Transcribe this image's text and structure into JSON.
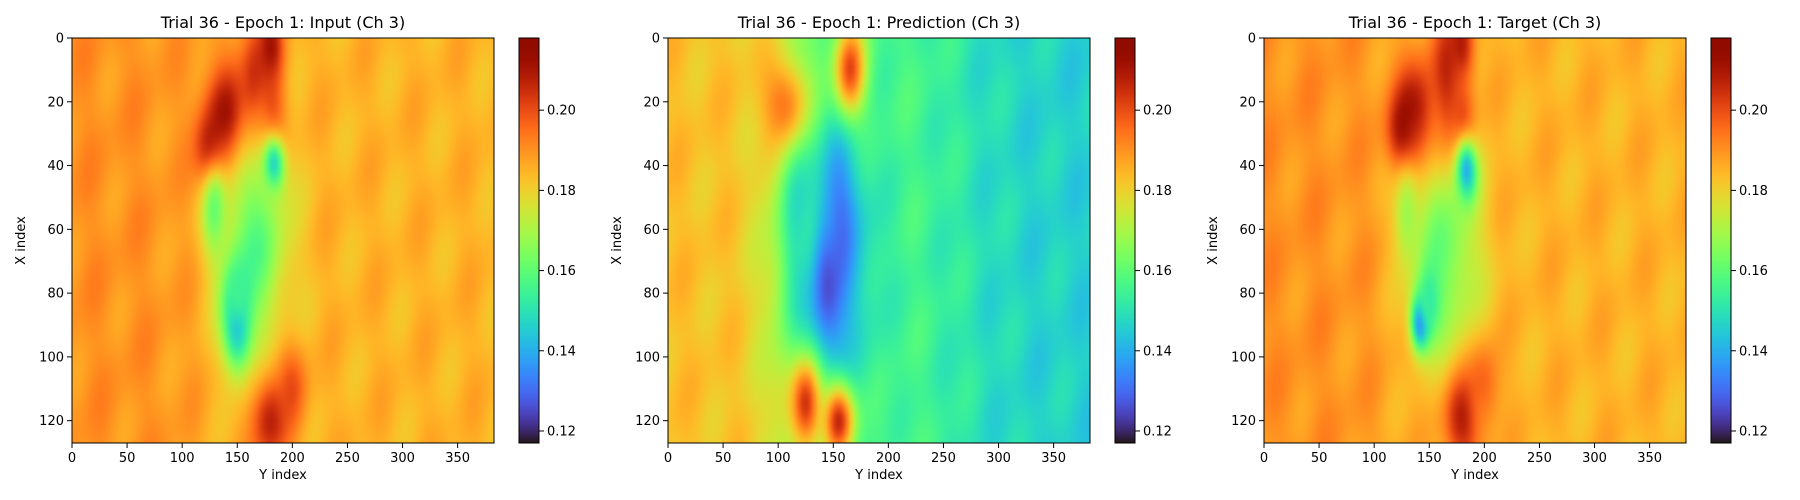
{
  "figure": {
    "colormap": "turbo"
  },
  "chart_data": [
    {
      "type": "heatmap",
      "title": "Trial 36 - Epoch 1: Input (Ch 3)",
      "xlabel": "Y index",
      "ylabel": "X index",
      "xlim": [
        0,
        383
      ],
      "ylim": [
        127,
        0
      ],
      "x_ticks": [
        0,
        50,
        100,
        150,
        200,
        250,
        300,
        350
      ],
      "y_ticks": [
        0,
        20,
        40,
        60,
        80,
        100,
        120
      ],
      "colorbar": {
        "min": 0.117,
        "max": 0.218,
        "ticks": [
          0.12,
          0.14,
          0.16,
          0.18,
          0.2
        ],
        "tick_labels": [
          "0.12",
          "0.14",
          "0.16",
          "0.18",
          "0.20"
        ]
      },
      "field": {
        "background": 0.185,
        "left_band": 0.19,
        "features": [
          {
            "x": 140,
            "y": 25,
            "sx": 15,
            "sy": 12,
            "v": 0.213
          },
          {
            "x": 128,
            "y": 35,
            "sx": 10,
            "sy": 8,
            "v": 0.215
          },
          {
            "x": 165,
            "y": 15,
            "sx": 10,
            "sy": 15,
            "v": 0.208
          },
          {
            "x": 180,
            "y": 3,
            "sx": 8,
            "sy": 8,
            "v": 0.21
          },
          {
            "x": 180,
            "y": 25,
            "sx": 10,
            "sy": 12,
            "v": 0.205
          },
          {
            "x": 183,
            "y": 40,
            "sx": 7,
            "sy": 6,
            "v": 0.135
          },
          {
            "x": 165,
            "y": 65,
            "sx": 22,
            "sy": 22,
            "v": 0.16
          },
          {
            "x": 150,
            "y": 90,
            "sx": 9,
            "sy": 10,
            "v": 0.138
          },
          {
            "x": 150,
            "y": 78,
            "sx": 8,
            "sy": 8,
            "v": 0.155
          },
          {
            "x": 130,
            "y": 55,
            "sx": 8,
            "sy": 10,
            "v": 0.163
          },
          {
            "x": 180,
            "y": 120,
            "sx": 12,
            "sy": 10,
            "v": 0.208
          },
          {
            "x": 200,
            "y": 110,
            "sx": 10,
            "sy": 10,
            "v": 0.198
          }
        ]
      }
    },
    {
      "type": "heatmap",
      "title": "Trial 36 - Epoch 1: Prediction (Ch 3)",
      "xlabel": "Y index",
      "ylabel": "X index",
      "xlim": [
        0,
        383
      ],
      "ylim": [
        127,
        0
      ],
      "x_ticks": [
        0,
        50,
        100,
        150,
        200,
        250,
        300,
        350
      ],
      "y_ticks": [
        0,
        20,
        40,
        60,
        80,
        100,
        120
      ],
      "colorbar": {
        "min": 0.117,
        "max": 0.218,
        "ticks": [
          0.12,
          0.14,
          0.16,
          0.18,
          0.2
        ],
        "tick_labels": [
          "0.12",
          "0.14",
          "0.16",
          "0.18",
          "0.20"
        ]
      },
      "field": {
        "background": 0.158,
        "left_band": 0.183,
        "right_band": 0.146,
        "features": [
          {
            "x": 150,
            "y": 70,
            "sx": 30,
            "sy": 30,
            "v": 0.14
          },
          {
            "x": 145,
            "y": 78,
            "sx": 10,
            "sy": 14,
            "v": 0.123
          },
          {
            "x": 155,
            "y": 55,
            "sx": 10,
            "sy": 15,
            "v": 0.132
          },
          {
            "x": 120,
            "y": 60,
            "sx": 10,
            "sy": 20,
            "v": 0.15
          },
          {
            "x": 165,
            "y": 10,
            "sx": 10,
            "sy": 10,
            "v": 0.2
          },
          {
            "x": 125,
            "y": 115,
            "sx": 10,
            "sy": 10,
            "v": 0.207
          },
          {
            "x": 155,
            "y": 120,
            "sx": 10,
            "sy": 8,
            "v": 0.205
          },
          {
            "x": 105,
            "y": 20,
            "sx": 15,
            "sy": 10,
            "v": 0.195
          }
        ]
      }
    },
    {
      "type": "heatmap",
      "title": "Trial 36 - Epoch 1: Target (Ch 3)",
      "xlabel": "Y index",
      "ylabel": "X index",
      "xlim": [
        0,
        383
      ],
      "ylim": [
        127,
        0
      ],
      "x_ticks": [
        0,
        50,
        100,
        150,
        200,
        250,
        300,
        350
      ],
      "y_ticks": [
        0,
        20,
        40,
        60,
        80,
        100,
        120
      ],
      "colorbar": {
        "min": 0.117,
        "max": 0.218,
        "ticks": [
          0.12,
          0.14,
          0.16,
          0.18,
          0.2
        ],
        "tick_labels": [
          "0.12",
          "0.14",
          "0.16",
          "0.18",
          "0.20"
        ]
      },
      "field": {
        "background": 0.185,
        "left_band": 0.19,
        "features": [
          {
            "x": 140,
            "y": 25,
            "sx": 15,
            "sy": 12,
            "v": 0.213
          },
          {
            "x": 128,
            "y": 30,
            "sx": 10,
            "sy": 8,
            "v": 0.215
          },
          {
            "x": 165,
            "y": 15,
            "sx": 10,
            "sy": 15,
            "v": 0.208
          },
          {
            "x": 180,
            "y": 3,
            "sx": 8,
            "sy": 8,
            "v": 0.21
          },
          {
            "x": 180,
            "y": 28,
            "sx": 8,
            "sy": 10,
            "v": 0.207
          },
          {
            "x": 183,
            "y": 42,
            "sx": 7,
            "sy": 7,
            "v": 0.13
          },
          {
            "x": 165,
            "y": 68,
            "sx": 22,
            "sy": 22,
            "v": 0.162
          },
          {
            "x": 142,
            "y": 89,
            "sx": 6,
            "sy": 6,
            "v": 0.125
          },
          {
            "x": 150,
            "y": 82,
            "sx": 8,
            "sy": 8,
            "v": 0.152
          },
          {
            "x": 130,
            "y": 55,
            "sx": 8,
            "sy": 10,
            "v": 0.165
          },
          {
            "x": 180,
            "y": 120,
            "sx": 12,
            "sy": 10,
            "v": 0.208
          },
          {
            "x": 200,
            "y": 110,
            "sx": 10,
            "sy": 10,
            "v": 0.198
          }
        ]
      }
    }
  ]
}
